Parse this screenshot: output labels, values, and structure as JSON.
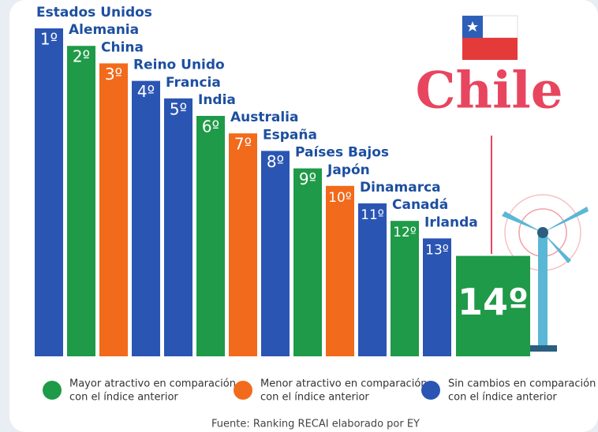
{
  "chart_data": {
    "type": "bar",
    "categories": [
      "Estados Unidos",
      "Alemania",
      "China",
      "Reino Unido",
      "Francia",
      "India",
      "Australia",
      "España",
      "Países Bajos",
      "Japón",
      "Dinamarca",
      "Canadá",
      "Irlanda",
      "Chile"
    ],
    "values": [
      1,
      2,
      3,
      4,
      5,
      6,
      7,
      8,
      9,
      10,
      11,
      12,
      13,
      14
    ],
    "value_labels": [
      "1º",
      "2º",
      "3º",
      "4º",
      "5º",
      "6º",
      "7º",
      "8º",
      "9º",
      "10º",
      "11º",
      "12º",
      "13º",
      "14º"
    ],
    "colors": [
      "#2b55b3",
      "#1f9a48",
      "#f26a1b",
      "#2b55b3",
      "#2b55b3",
      "#1f9a48",
      "#f26a1b",
      "#2b55b3",
      "#1f9a48",
      "#f26a1b",
      "#2b55b3",
      "#1f9a48",
      "#2b55b3",
      "#1f9a48"
    ],
    "legend": [
      {
        "color": "#1f9a48",
        "lines": [
          "Mayor atractivo en comparación",
          "con el índice anterior"
        ]
      },
      {
        "color": "#f26a1b",
        "lines": [
          "Menor atractivo en comparación",
          "con el índice anterior"
        ]
      },
      {
        "color": "#2b55b3",
        "lines": [
          "Sin cambios en comparación",
          "con el índice anterior"
        ]
      }
    ],
    "source": "Fuente: Ranking RECAI elaborado por EY"
  }
}
